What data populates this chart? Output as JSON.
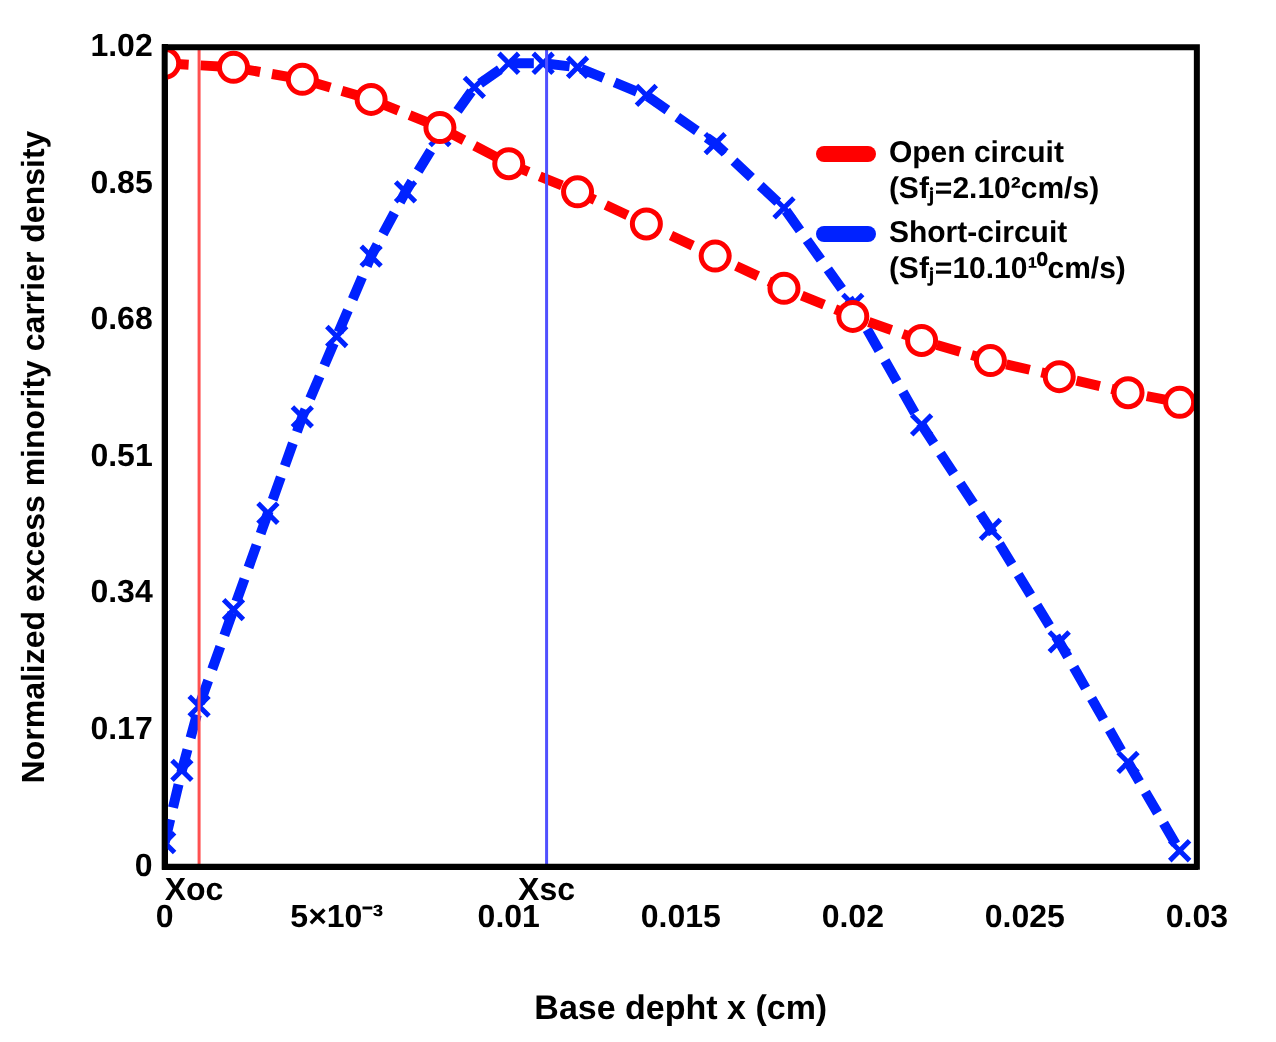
{
  "chart_data": {
    "type": "line",
    "xlabel": "Base depht x (cm)",
    "ylabel": "Normalized excess minority carrier density",
    "xlim": [
      0,
      0.03
    ],
    "xticks": [
      0,
      {
        "value": 0.005,
        "label": "5×10⁻³"
      },
      0.01,
      0.015,
      0.02,
      0.025,
      0.03
    ],
    "ylim": [
      0,
      1.02
    ],
    "yticks": [
      0,
      0.17,
      0.34,
      0.51,
      0.68,
      0.85,
      1.02
    ],
    "legend": "top right",
    "line_style": "dashed",
    "grid": false,
    "series": [
      {
        "name": "Open circuit (Sfⱼ=2.10²cm/s)",
        "color": "#ff0000",
        "marker": "circle",
        "x": [
          0,
          0.002,
          0.004,
          0.006,
          0.008,
          0.01,
          0.012,
          0.014,
          0.016,
          0.018,
          0.02,
          0.022,
          0.024,
          0.026,
          0.028,
          0.0295
        ],
        "values": [
          1.0,
          0.995,
          0.98,
          0.955,
          0.92,
          0.875,
          0.84,
          0.8,
          0.76,
          0.72,
          0.685,
          0.655,
          0.63,
          0.61,
          0.59,
          0.578
        ]
      },
      {
        "name": "Short-circuit (Sfⱼ=10.10¹⁰cm/s)",
        "color": "#0022ff",
        "marker": "cross",
        "x": [
          0,
          0.0005,
          0.001,
          0.002,
          0.003,
          0.004,
          0.005,
          0.006,
          0.007,
          0.008,
          0.009,
          0.01,
          0.011,
          0.012,
          0.014,
          0.016,
          0.018,
          0.02,
          0.022,
          0.024,
          0.026,
          0.028,
          0.0295
        ],
        "values": [
          0.03,
          0.12,
          0.2,
          0.32,
          0.44,
          0.56,
          0.66,
          0.76,
          0.84,
          0.91,
          0.97,
          1.0,
          1.0,
          0.995,
          0.96,
          0.9,
          0.82,
          0.7,
          0.55,
          0.42,
          0.28,
          0.13,
          0.02
        ]
      }
    ],
    "ref_lines": [
      {
        "axis": "x",
        "value": 0.001,
        "label": "Xoc",
        "color": "#ff5050"
      },
      {
        "axis": "x",
        "value": 0.0111,
        "label": "Xsc",
        "color": "#5050ff"
      }
    ]
  }
}
